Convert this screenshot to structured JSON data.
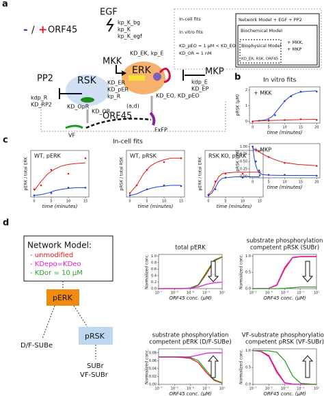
{
  "panels": {
    "a": "a",
    "b": "b",
    "c": "c",
    "d": "d"
  },
  "legend": {
    "minus": "-",
    "slash": "/",
    "plus": "+",
    "label": "ORF45"
  },
  "nodes": {
    "egf": "EGF",
    "mkk": "MKK",
    "erk": "ERK",
    "rsk": "RSK",
    "mkp": "MKP",
    "pp2": "PP2",
    "orf45": "ORF45",
    "vf": "VF",
    "fxfp": "FxFP"
  },
  "rates": {
    "egf": [
      "kp_K_bg",
      "kp_K",
      "kp_K_egf"
    ],
    "ek": "KD_EK, kp_E",
    "er": [
      "KD_ER",
      "KD_pER",
      "kp_R"
    ],
    "or": [
      "KD_OR",
      "KD_OpR"
    ],
    "ad": "(a,d)",
    "eo": "KD_EO, KD_pEO",
    "mkp": [
      "kdp_E",
      "KD_EP"
    ],
    "pp2": [
      "kdp_R",
      "KD_RP2"
    ]
  },
  "box": {
    "incell": "In-cell fits",
    "invitro": "In vitro fits",
    "kd1": "KD_pEO = 1 μM < KD_EO",
    "kd2": "KD_OR = 1 nM",
    "network": "Network Model  + EGF + PP2",
    "biochem": "Biochemical Model",
    "biophys": "Biophysical Model",
    "mkk": "+ MKK,",
    "mkp": "+ MKP",
    "params": "KD_ER, RSK, ORF45"
  },
  "titles": {
    "b": "In vitro fits",
    "c": "In-cell fits"
  },
  "network": {
    "title": "Network Model:",
    "items": [
      "- unmodified",
      "- KDepo=KDeo",
      "- KDor = 10 μM"
    ],
    "colors": [
      "#e41a1c",
      "#e020d0",
      "#2ca02c"
    ],
    "perk": "pERK",
    "prsk": "pRSK",
    "subE": "D/F-SUBe",
    "subr": "SUBr",
    "vfsubr": "VF-SUBr"
  },
  "plots": [
    {
      "xlabel": "time (minutes)",
      "ylabel": "pRSK (μM)",
      "annotation": "+ MKK",
      "xlim": [
        -1,
        21
      ],
      "ylim": [
        -0.1,
        2.2
      ],
      "xticks": [
        0,
        5,
        10,
        15,
        20
      ],
      "yticks": [
        0,
        1,
        2
      ],
      "series": [
        {
          "style": "line",
          "color": "#1f3fd0",
          "x": [
            0,
            4,
            6,
            8,
            10,
            12,
            14,
            16,
            20
          ],
          "values": [
            0.02,
            0.1,
            0.3,
            0.8,
            1.3,
            1.65,
            1.82,
            1.9,
            1.95
          ]
        },
        {
          "style": "points",
          "color": "#1f3fd0",
          "x": [
            0,
            2,
            5,
            7,
            10,
            12,
            15,
            20
          ],
          "values": [
            0,
            0.05,
            0.1,
            0.4,
            1.3,
            1.6,
            1.9,
            1.9
          ]
        },
        {
          "style": "line",
          "color": "#e41a1c",
          "x": [
            0,
            5,
            10,
            15,
            20
          ],
          "values": [
            0.03,
            0.06,
            0.09,
            0.12,
            0.14
          ]
        },
        {
          "style": "points",
          "color": "#e41a1c",
          "x": [
            0,
            5,
            10,
            15,
            20
          ],
          "values": [
            0,
            0.05,
            0.1,
            0.15,
            0.1
          ]
        }
      ]
    },
    {
      "xlabel": "time (minutes)",
      "ylabel": "pRSK (μM)",
      "annotation": "+ MKP",
      "xlim": [
        -1,
        21
      ],
      "ylim": [
        -0.05,
        1.1
      ],
      "xticks": [
        0,
        5,
        10,
        15,
        20
      ],
      "yticks": [
        {
          "value": 0,
          "label": "0.00"
        },
        {
          "value": 0.25,
          "label": "0.25"
        },
        {
          "value": 0.5,
          "label": "0.50"
        },
        {
          "value": 0.75,
          "label": "0.75"
        },
        {
          "value": 1,
          "label": "1.00"
        }
      ],
      "series": [
        {
          "style": "line",
          "color": "#e41a1c",
          "x": [
            0,
            2,
            4,
            6,
            8,
            10,
            14,
            20
          ],
          "values": [
            0.95,
            0.82,
            0.7,
            0.6,
            0.52,
            0.46,
            0.4,
            0.36
          ]
        },
        {
          "style": "points",
          "color": "#e41a1c",
          "x": [
            0,
            2,
            5,
            10,
            20
          ],
          "values": [
            1,
            0.85,
            0.65,
            0.45,
            0.35
          ]
        },
        {
          "style": "line",
          "color": "#1f3fd0",
          "x": [
            0,
            0.5,
            1,
            1.5,
            2,
            3,
            5,
            10,
            20
          ],
          "values": [
            1,
            0.6,
            0.35,
            0.2,
            0.12,
            0.06,
            0.04,
            0.03,
            0.03
          ]
        },
        {
          "style": "points",
          "color": "#1f3fd0",
          "x": [
            0,
            1,
            2,
            5,
            10,
            20
          ],
          "values": [
            1,
            0.5,
            0.2,
            0.05,
            0.05,
            0.02
          ]
        }
      ]
    },
    {
      "title": "WT, pERK",
      "xlabel": "time (minutes)",
      "ylabel": "pERK / total ERK",
      "xlim": [
        -1,
        16
      ],
      "ylim": [
        0,
        0.6
      ],
      "xticks": [
        0,
        5,
        10,
        15
      ],
      "series": [
        {
          "style": "line",
          "color": "#e41a1c",
          "x": [
            0,
            2,
            4,
            6,
            8,
            10,
            12,
            15
          ],
          "values": [
            0.08,
            0.2,
            0.3,
            0.36,
            0.4,
            0.42,
            0.43,
            0.44
          ]
        },
        {
          "style": "points",
          "color": "#e41a1c",
          "x": [
            0,
            2,
            5,
            10,
            15
          ],
          "values": [
            0.1,
            0.15,
            0.35,
            0.3,
            0.5
          ]
        },
        {
          "style": "line",
          "color": "#1f3fd0",
          "x": [
            0,
            2,
            4,
            6,
            8,
            10,
            12,
            15
          ],
          "values": [
            0.02,
            0.03,
            0.05,
            0.08,
            0.1,
            0.11,
            0.12,
            0.12
          ]
        },
        {
          "style": "points",
          "color": "#1f3fd0",
          "x": [
            0,
            5,
            10,
            15
          ],
          "values": [
            0.02,
            0.05,
            0.12,
            0.12
          ]
        }
      ]
    },
    {
      "title": "WT, pRSK",
      "xlabel": "time (minutes)",
      "ylabel": "pRSK / total RSK",
      "xlim": [
        -1,
        16
      ],
      "ylim": [
        0,
        0.6
      ],
      "xticks": [
        0,
        5,
        10,
        15
      ],
      "series": [
        {
          "style": "line",
          "color": "#e41a1c",
          "x": [
            0,
            2,
            4,
            6,
            8,
            10,
            12,
            15
          ],
          "values": [
            0.05,
            0.15,
            0.3,
            0.4,
            0.45,
            0.48,
            0.5,
            0.5
          ]
        },
        {
          "style": "points",
          "color": "#e41a1c",
          "x": [
            0,
            2,
            5,
            10,
            15
          ],
          "values": [
            0.05,
            0.15,
            0.35,
            0.45,
            0.5
          ]
        },
        {
          "style": "line",
          "color": "#1f3fd0",
          "x": [
            0,
            2,
            4,
            6,
            8,
            10,
            12,
            15
          ],
          "values": [
            0.02,
            0.04,
            0.08,
            0.11,
            0.13,
            0.14,
            0.15,
            0.15
          ]
        },
        {
          "style": "points",
          "color": "#1f3fd0",
          "x": [
            0,
            5,
            10,
            15
          ],
          "values": [
            0.02,
            0.1,
            0.15,
            0.14
          ]
        }
      ]
    },
    {
      "title": "RSK KO, pERK",
      "xlabel": "time (minutes)",
      "ylabel": "pERK / total ERK",
      "xlim": [
        -1,
        16
      ],
      "ylim": [
        0,
        0.6
      ],
      "xticks": [
        0,
        5,
        10,
        15
      ],
      "series": [
        {
          "style": "line",
          "color": "#e41a1c",
          "x": [
            0,
            1,
            2,
            3,
            4,
            5,
            8,
            12,
            15
          ],
          "values": [
            0.03,
            0.08,
            0.18,
            0.26,
            0.3,
            0.31,
            0.32,
            0.32,
            0.32
          ]
        },
        {
          "style": "points",
          "color": "#e41a1c",
          "x": [
            0,
            2,
            5,
            10,
            15
          ],
          "values": [
            0.03,
            0.2,
            0.3,
            0.3,
            0.32
          ]
        },
        {
          "style": "line",
          "color": "#1f3fd0",
          "x": [
            0,
            1,
            2,
            3,
            4,
            5,
            8,
            12,
            15
          ],
          "values": [
            0.02,
            0.05,
            0.12,
            0.2,
            0.24,
            0.25,
            0.26,
            0.26,
            0.26
          ]
        },
        {
          "style": "points",
          "color": "#1f3fd0",
          "x": [
            0,
            2,
            5,
            10,
            15
          ],
          "values": [
            0.02,
            0.1,
            0.25,
            0.25,
            0.28
          ]
        }
      ]
    },
    {
      "title": [
        "total pERK"
      ],
      "xlabel": "ORF45 conc. (μM)",
      "ylabel": "Normalized conc.",
      "xscale": "log",
      "xlim": [
        1e-07,
        10
      ],
      "ylim": [
        0,
        1.05
      ],
      "xticks": [
        {
          "value": 1e-07,
          "label": "10⁻⁷"
        },
        {
          "value": 1e-05,
          "label": "10⁻⁵"
        },
        {
          "value": 0.001,
          "label": "10⁻³"
        },
        {
          "value": 0.1,
          "label": "10⁻¹"
        },
        {
          "value": 10,
          "label": "10¹"
        }
      ],
      "yticks": [
        {
          "value": 0,
          "label": "0.0"
        },
        {
          "value": 0.2,
          "label": "0.2"
        },
        {
          "value": 0.4,
          "label": "0.4"
        },
        {
          "value": 0.6,
          "label": "0.6"
        },
        {
          "value": 0.8,
          "label": "0.8"
        },
        {
          "value": 1,
          "label": "1.0"
        }
      ],
      "series": [
        {
          "style": "line",
          "color": "#e41a1c",
          "x": [
            1e-07,
            1e-05,
            0.0001,
            0.001,
            0.01,
            0.1,
            1,
            10
          ],
          "values": [
            0,
            0,
            0,
            0.01,
            0.1,
            0.45,
            0.85,
            0.97
          ]
        },
        {
          "style": "line",
          "color": "#2ca02c",
          "x": [
            1e-07,
            1e-05,
            0.0001,
            0.001,
            0.01,
            0.1,
            1,
            10
          ],
          "values": [
            0,
            0,
            0,
            0.02,
            0.12,
            0.5,
            0.88,
            0.98
          ]
        },
        {
          "style": "line",
          "color": "#e020d0",
          "x": [
            1e-07,
            1e-05,
            0.0001,
            0.001,
            0.01,
            0.1,
            1,
            10
          ],
          "values": [
            0,
            0,
            0,
            0.01,
            0.05,
            0.13,
            0.18,
            0.2
          ]
        }
      ]
    },
    {
      "title": [
        "substrate phosphorylation",
        "competent pRSK (SUBr)"
      ],
      "xlabel": "ORF45 conc. (μM)",
      "ylabel": "Normalized conc.",
      "xscale": "log",
      "xlim": [
        1e-07,
        10
      ],
      "ylim": [
        0,
        1.05
      ],
      "xticks": [
        {
          "value": 1e-07,
          "label": "10⁻⁷"
        },
        {
          "value": 1e-05,
          "label": "10⁻⁵"
        },
        {
          "value": 0.001,
          "label": "10⁻³"
        },
        {
          "value": 0.1,
          "label": "10⁻¹"
        },
        {
          "value": 10,
          "label": "10¹"
        }
      ],
      "yticks": [
        {
          "value": 0,
          "label": "0.0"
        },
        {
          "value": 0.5,
          "label": "0.5"
        },
        {
          "value": 1,
          "label": "1.0"
        }
      ],
      "series": [
        {
          "style": "line",
          "color": "#e41a1c",
          "x": [
            1e-07,
            1e-05,
            0.0001,
            0.001,
            0.01,
            0.1,
            1,
            10
          ],
          "values": [
            0,
            0.01,
            0.1,
            0.6,
            0.95,
            0.98,
            0.98,
            0.98
          ]
        },
        {
          "style": "line",
          "color": "#e020d0",
          "x": [
            1e-07,
            1e-05,
            0.0001,
            0.001,
            0.01,
            0.1,
            1,
            10
          ],
          "values": [
            0,
            0.01,
            0.12,
            0.65,
            0.96,
            0.99,
            0.99,
            0.99
          ]
        },
        {
          "style": "line",
          "color": "#2ca02c",
          "x": [
            1e-07,
            1e-05,
            0.0001,
            0.001,
            0.01,
            0.1,
            1,
            10
          ],
          "values": [
            0,
            0,
            0,
            0.01,
            0.03,
            0.05,
            0.05,
            0.05
          ]
        }
      ]
    },
    {
      "title": [
        "substrate phosphorylation",
        "competent pERK (D/F-SUBe)"
      ],
      "xlabel": "ORF45 conc. (μM)",
      "ylabel": "Normalized conc.",
      "xscale": "log",
      "xlim": [
        1e-07,
        10
      ],
      "ylim": [
        0,
        0.09
      ],
      "xticks": [
        {
          "value": 1e-07,
          "label": "10⁻⁷"
        },
        {
          "value": 1e-05,
          "label": "10⁻⁵"
        },
        {
          "value": 0.001,
          "label": "10⁻³"
        },
        {
          "value": 0.1,
          "label": "10⁻¹"
        },
        {
          "value": 10,
          "label": "10¹"
        }
      ],
      "yticks": [
        {
          "value": 0,
          "label": "0.00"
        },
        {
          "value": 0.02,
          "label": "0.02"
        },
        {
          "value": 0.04,
          "label": "0.04"
        },
        {
          "value": 0.06,
          "label": "0.06"
        },
        {
          "value": 0.08,
          "label": "0.08"
        }
      ],
      "series": [
        {
          "style": "line",
          "color": "#e41a1c",
          "x": [
            1e-07,
            1e-05,
            0.0001,
            0.001,
            0.01,
            0.1,
            1,
            10
          ],
          "values": [
            0.069,
            0.069,
            0.068,
            0.066,
            0.055,
            0.03,
            0.01,
            0.003
          ]
        },
        {
          "style": "line",
          "color": "#2ca02c",
          "x": [
            1e-07,
            1e-05,
            0.0001,
            0.001,
            0.01,
            0.1,
            1,
            10
          ],
          "values": [
            0.07,
            0.07,
            0.07,
            0.068,
            0.06,
            0.035,
            0.012,
            0.004
          ]
        },
        {
          "style": "line",
          "color": "#e020d0",
          "x": [
            1e-07,
            1e-05,
            0.0001,
            0.001,
            0.01,
            0.1,
            1,
            10
          ],
          "values": [
            0.069,
            0.069,
            0.069,
            0.07,
            0.074,
            0.079,
            0.08,
            0.08
          ]
        }
      ]
    },
    {
      "title": [
        "VF-substrate phosphorylation",
        "competent pRSK (VF-SUBr)"
      ],
      "xlabel": "ORF45 conc. (μM)",
      "ylabel": "Normalized conc.",
      "xscale": "log",
      "xlim": [
        1e-07,
        10
      ],
      "ylim": [
        0,
        1.05
      ],
      "xticks": [
        {
          "value": 1e-07,
          "label": "10⁻⁷"
        },
        {
          "value": 1e-05,
          "label": "10⁻⁵"
        },
        {
          "value": 0.001,
          "label": "10⁻³"
        },
        {
          "value": 0.1,
          "label": "10⁻¹"
        },
        {
          "value": 10,
          "label": "10¹"
        }
      ],
      "yticks": [
        {
          "value": 0,
          "label": "0.0"
        },
        {
          "value": 0.5,
          "label": "0.5"
        },
        {
          "value": 1,
          "label": "1.0"
        }
      ],
      "series": [
        {
          "style": "line",
          "color": "#e41a1c",
          "x": [
            1e-07,
            1e-06,
            1e-05,
            0.0001,
            0.001,
            0.01,
            0.1,
            10
          ],
          "values": [
            1,
            0.98,
            0.85,
            0.4,
            0.05,
            0.01,
            0,
            0
          ]
        },
        {
          "style": "line",
          "color": "#e020d0",
          "x": [
            1e-07,
            1e-06,
            1e-05,
            0.0001,
            0.001,
            0.01,
            0.1,
            10
          ],
          "values": [
            1,
            0.97,
            0.82,
            0.35,
            0.04,
            0.01,
            0,
            0
          ]
        },
        {
          "style": "line",
          "color": "#2ca02c",
          "x": [
            1e-07,
            1e-06,
            1e-05,
            0.0001,
            0.001,
            0.01,
            0.1,
            10
          ],
          "values": [
            1,
            1,
            0.99,
            0.95,
            0.7,
            0.25,
            0.03,
            0
          ]
        }
      ]
    }
  ]
}
